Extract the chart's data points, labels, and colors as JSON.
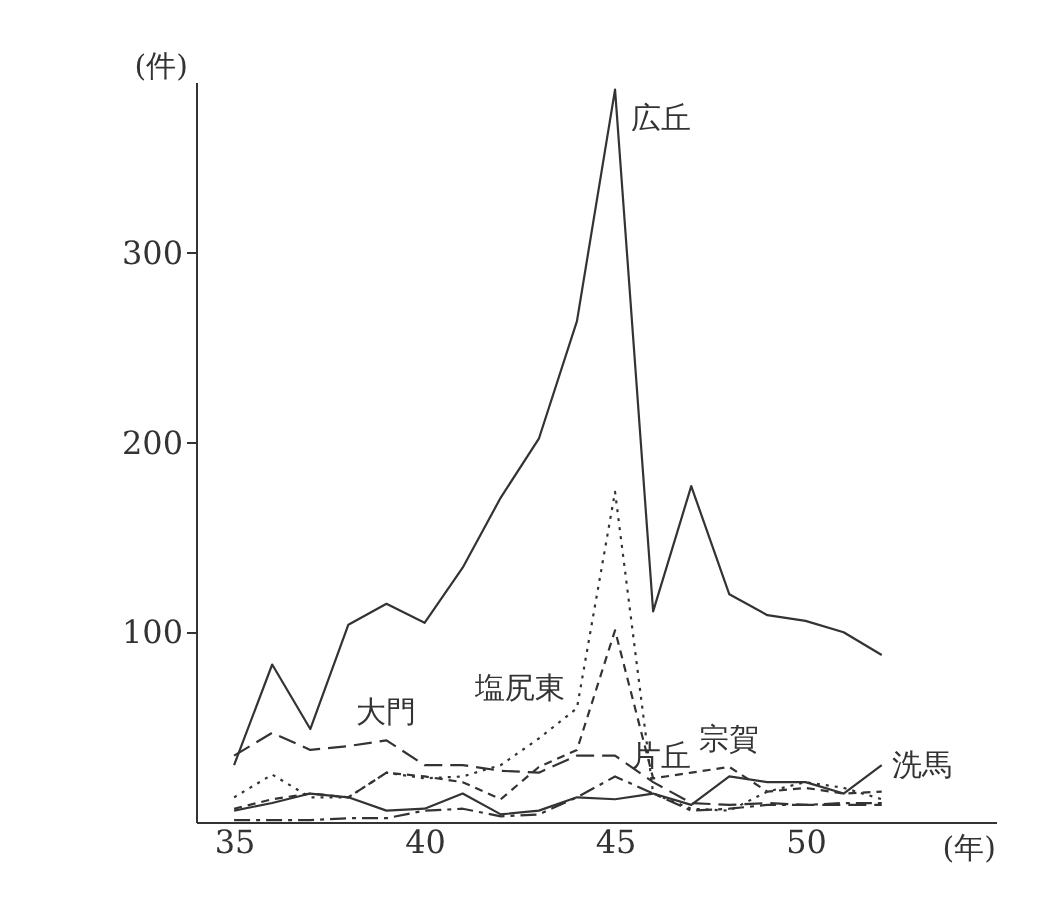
{
  "chart_data": {
    "type": "line",
    "xlabel": "(年)",
    "ylabel": "(件)",
    "x": [
      35,
      36,
      37,
      38,
      39,
      40,
      41,
      42,
      43,
      44,
      45,
      46,
      47,
      48,
      49,
      50,
      51,
      52
    ],
    "xlim": [
      34,
      55
    ],
    "xticks": [
      35,
      40,
      45,
      50
    ],
    "ylim": [
      0,
      390
    ],
    "yticks": [
      100,
      200,
      300
    ],
    "grid": false,
    "legend": false,
    "series": [
      {
        "name": "広丘",
        "color": "#333333",
        "line_style": "solid",
        "values": [
          30,
          83,
          49,
          104,
          115,
          105,
          134,
          171,
          202,
          264,
          386,
          111,
          177,
          120,
          109,
          106,
          100,
          88
        ]
      },
      {
        "name": "塩尻東",
        "color": "#333333",
        "line_style": "dotted",
        "values": [
          13,
          25,
          13,
          13,
          26,
          23,
          24,
          30,
          44,
          60,
          174,
          15,
          7,
          6,
          16,
          21,
          18,
          12
        ]
      },
      {
        "name": "宗賀",
        "color": "#333333",
        "line_style": "dashed",
        "values": [
          7,
          12,
          15,
          13,
          26,
          24,
          21,
          12,
          29,
          38,
          101,
          23,
          26,
          29,
          16,
          18,
          15,
          16
        ]
      },
      {
        "name": "大門",
        "color": "#333333",
        "line_style": "longdash",
        "values": [
          35,
          47,
          38,
          40,
          43,
          30,
          30,
          27,
          26,
          35,
          35,
          21,
          10,
          9,
          10,
          9,
          9,
          9
        ]
      },
      {
        "name": "片丘",
        "color": "#333333",
        "line_style": "dashdot",
        "values": [
          1,
          1,
          1,
          2,
          2,
          6,
          7,
          3,
          4,
          13,
          24,
          15,
          6,
          7,
          9,
          9,
          10,
          10
        ]
      },
      {
        "name": "洗馬",
        "color": "#333333",
        "line_style": "solid",
        "values": [
          6,
          10,
          15,
          13,
          6,
          7,
          15,
          4,
          6,
          13,
          12,
          15,
          9,
          24,
          21,
          21,
          15,
          30
        ]
      }
    ]
  }
}
